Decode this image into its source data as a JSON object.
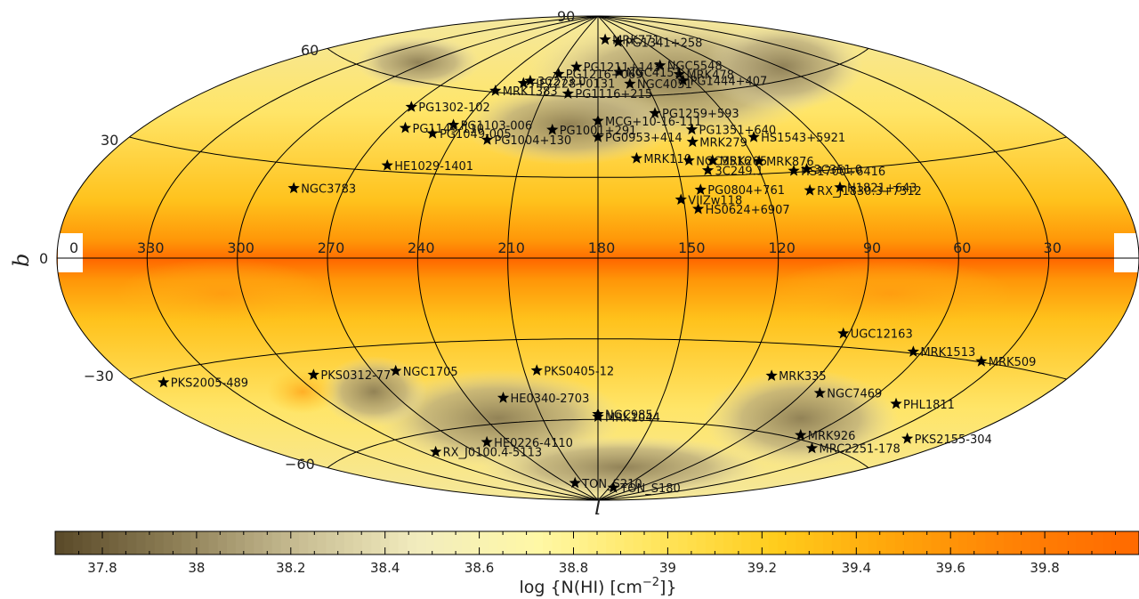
{
  "map": {
    "projection": "aitoff",
    "axis_letters": {
      "latitude": "b",
      "longitude": "l"
    },
    "latitude_ticks": [
      "90",
      "60",
      "30",
      "0",
      "−30",
      "−60"
    ],
    "longitude_ticks": [
      {
        "label": "0",
        "l": 0
      },
      {
        "label": "330",
        "l": 330
      },
      {
        "label": "300",
        "l": 300
      },
      {
        "label": "270",
        "l": 270
      },
      {
        "label": "240",
        "l": 240
      },
      {
        "label": "210",
        "l": 210
      },
      {
        "label": "180",
        "l": 180
      },
      {
        "label": "150",
        "l": 150
      },
      {
        "label": "120",
        "l": 120
      },
      {
        "label": "90",
        "l": 90
      },
      {
        "label": "60",
        "l": 60
      },
      {
        "label": "30",
        "l": 30
      }
    ]
  },
  "colorbar": {
    "ticks": [
      "37.8",
      "38",
      "38.2",
      "38.4",
      "38.6",
      "38.8",
      "39",
      "39.2",
      "39.4",
      "39.6",
      "39.8"
    ],
    "title_prefix": "log {N(HI) [cm",
    "title_exp": "−2",
    "title_suffix": "]}",
    "range": [
      37.7,
      40.0
    ],
    "colors": [
      "#5b4b2a",
      "#8f8057",
      "#c8bd93",
      "#f2ecbe",
      "#fff8a6",
      "#ffe55d",
      "#ffcc1c",
      "#ffa40a",
      "#ff8105",
      "#ff6a00"
    ]
  },
  "targets": [
    {
      "name": "MRK771",
      "l": 169.1,
      "b": 81.2
    },
    {
      "name": "PG1341+258",
      "l": 152.3,
      "b": 80.1
    },
    {
      "name": "NGC5548",
      "l": 131.7,
      "b": 70.6
    },
    {
      "name": "MRK478",
      "l": 124.7,
      "b": 66.9
    },
    {
      "name": "PG1444+407",
      "l": 126.3,
      "b": 64.6
    },
    {
      "name": "NGC4151",
      "l": 164.6,
      "b": 69.1
    },
    {
      "name": "NGC4051",
      "l": 160.1,
      "b": 64.6
    },
    {
      "name": "PG1216+069",
      "l": 207.5,
      "b": 68.1
    },
    {
      "name": "PG1211+143",
      "l": 196.8,
      "b": 71.0
    },
    {
      "name": "3C273.0",
      "l": 223.0,
      "b": 65.0
    },
    {
      "name": "HE1228+0131",
      "l": 226.0,
      "b": 64.0
    },
    {
      "name": "MRK1383",
      "l": 238.0,
      "b": 60.5
    },
    {
      "name": "PG1116+215",
      "l": 196.9,
      "b": 61.0
    },
    {
      "name": "PG1302-102",
      "l": 270.0,
      "b": 52.0
    },
    {
      "name": "MCG+10-16-111",
      "l": 180.0,
      "b": 51.0
    },
    {
      "name": "PG1259+593",
      "l": 152.5,
      "b": 53.5
    },
    {
      "name": "PG1103-006",
      "l": 244.0,
      "b": 47.5
    },
    {
      "name": "PG1149-110",
      "l": 263.0,
      "b": 45.0
    },
    {
      "name": "PG1049-005",
      "l": 250.0,
      "b": 44.0
    },
    {
      "name": "PG1001+291",
      "l": 200.0,
      "b": 47.5
    },
    {
      "name": "PG0953+414",
      "l": 180.0,
      "b": 45.0
    },
    {
      "name": "PG1351+640",
      "l": 139.0,
      "b": 47.0
    },
    {
      "name": "HS1543+5921",
      "l": 115.0,
      "b": 43.0
    },
    {
      "name": "PG1004+130",
      "l": 226.0,
      "b": 43.0
    },
    {
      "name": "MRK279",
      "l": 141.0,
      "b": 42.5
    },
    {
      "name": "MRK110",
      "l": 165.0,
      "b": 37.0
    },
    {
      "name": "NGC3516",
      "l": 145.0,
      "b": 35.8
    },
    {
      "name": "MRK205",
      "l": 136.0,
      "b": 35.5
    },
    {
      "name": "MRK876",
      "l": 118.5,
      "b": 34.5
    },
    {
      "name": "3C249.1",
      "l": 139.0,
      "b": 32.0
    },
    {
      "name": "HS1700+6416",
      "l": 107.5,
      "b": 30.5
    },
    {
      "name": "3C351.0",
      "l": 102.5,
      "b": 30.8
    },
    {
      "name": "HE1029-1401",
      "l": 259.0,
      "b": 32.0
    },
    {
      "name": "PG0804+761",
      "l": 143.5,
      "b": 25.0
    },
    {
      "name": "VIIZw118",
      "l": 151.0,
      "b": 21.5
    },
    {
      "name": "HS0624+6907",
      "l": 145.5,
      "b": 18.0
    },
    {
      "name": "RX_J1830.3+7312",
      "l": 105.0,
      "b": 23.5
    },
    {
      "name": "H1821+643",
      "l": 94.0,
      "b": 24.0
    },
    {
      "name": "NGC3783",
      "l": 287.5,
      "b": 22.5
    },
    {
      "name": "UGC12163",
      "l": 92.0,
      "b": -25.5
    },
    {
      "name": "MRK1513",
      "l": 63.0,
      "b": -29.5
    },
    {
      "name": "MRK509",
      "l": 36.0,
      "b": -29.8
    },
    {
      "name": "PKS2005-489",
      "l": 350.0,
      "b": -32.5
    },
    {
      "name": "PKS0312-77",
      "l": 293.5,
      "b": -37.5
    },
    {
      "name": "NGC1705",
      "l": 261.0,
      "b": -39.0
    },
    {
      "name": "PKS0405-12",
      "l": 204.9,
      "b": -41.5
    },
    {
      "name": "MRK335",
      "l": 108.8,
      "b": -41.4
    },
    {
      "name": "NGC7469",
      "l": 83.1,
      "b": -45.5
    },
    {
      "name": "PHL1811",
      "l": 47.5,
      "b": -45.0
    },
    {
      "name": "HE0340-2703",
      "l": 224.0,
      "b": -51.0
    },
    {
      "name": "NGC985",
      "l": 180.0,
      "b": -58.0
    },
    {
      "name": "MRK1044",
      "l": 180.0,
      "b": -59.0
    },
    {
      "name": "MRK926",
      "l": 64.5,
      "b": -58.8
    },
    {
      "name": "PKS2155-304",
      "l": 17.7,
      "b": -52.2
    },
    {
      "name": "MRC2251-178",
      "l": 46.2,
      "b": -61.3
    },
    {
      "name": "HE0226-4110",
      "l": 253.9,
      "b": -65.8
    },
    {
      "name": "RX_J0100.4-5113",
      "l": 293.0,
      "b": -65.8
    },
    {
      "name": "TON_S210",
      "l": 225.0,
      "b": -83.2
    },
    {
      "name": "TON_S180",
      "l": 139.0,
      "b": -85.1
    }
  ]
}
